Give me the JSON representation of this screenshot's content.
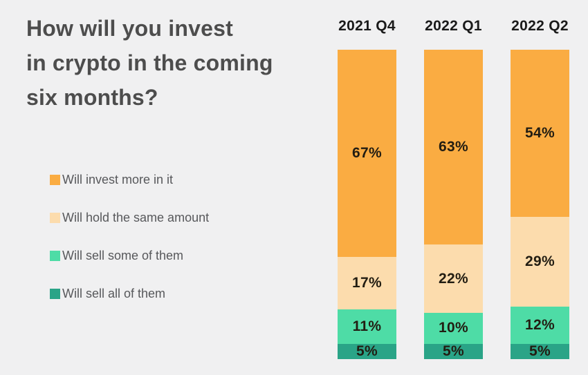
{
  "title_lines": [
    "How will you invest",
    "in crypto in the coming",
    "six months?"
  ],
  "chart_data": {
    "type": "bar",
    "stacked": true,
    "title": "How will you invest in crypto in the coming six months?",
    "categories": [
      "2021 Q4",
      "2022 Q1",
      "2022 Q2"
    ],
    "series": [
      {
        "name": "Will invest more in it",
        "color": "#FAAC42",
        "values": [
          67,
          63,
          54
        ]
      },
      {
        "name": "Will hold the same amount",
        "color": "#FCDCAD",
        "values": [
          17,
          22,
          29
        ]
      },
      {
        "name": "Will sell some of them",
        "color": "#4EDCA6",
        "values": [
          11,
          10,
          12
        ]
      },
      {
        "name": "Will sell all of them",
        "color": "#2AA487",
        "values": [
          5,
          5,
          5
        ]
      }
    ],
    "value_suffix": "%",
    "ylim": [
      0,
      100
    ],
    "grid": false,
    "legend_position": "left",
    "background_color": "#F0F0F1",
    "title_color": "#4D4D4D",
    "category_label_color": "#1A1A1A",
    "value_label_color": "#221D12",
    "legend_text_color": "#57585B"
  }
}
